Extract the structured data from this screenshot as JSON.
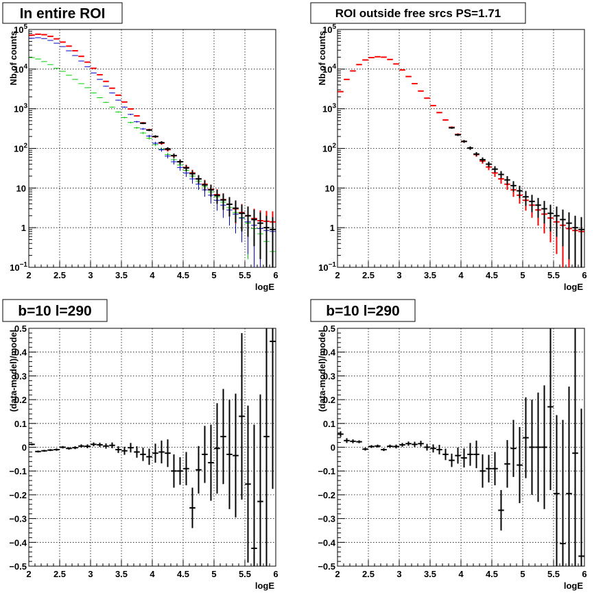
{
  "chart_data": [
    {
      "type": "scatter",
      "title": "In entire ROI",
      "xlabel": "logE",
      "ylabel": "Nb of counts",
      "xlim": [
        2,
        6
      ],
      "ylim": [
        0.1,
        100000
      ],
      "log_y": true,
      "grid": true,
      "x_ticks": [
        "2",
        "2.5",
        "3",
        "3.5",
        "4",
        "4.5",
        "5",
        "5.5",
        "6"
      ],
      "y_ticks": [
        {
          "v": 0.1,
          "base": "10",
          "exp": "−1"
        },
        {
          "v": 1,
          "base": "1",
          "exp": ""
        },
        {
          "v": 10,
          "base": "10",
          "exp": ""
        },
        {
          "v": 100,
          "base": "10",
          "exp": "2"
        },
        {
          "v": 1000,
          "base": "10",
          "exp": "3"
        },
        {
          "v": 10000,
          "base": "10",
          "exp": "4"
        },
        {
          "v": 100000,
          "base": "10",
          "exp": "5"
        }
      ],
      "series": [
        {
          "color": "#00cc00",
          "x": [
            2.05,
            2.15,
            2.25,
            2.35,
            2.45,
            2.55,
            2.65,
            2.75,
            2.85,
            2.95,
            3.05,
            3.15,
            3.25,
            3.35,
            3.45,
            3.55,
            3.65,
            3.75,
            3.85,
            3.95,
            4.05,
            4.15,
            4.25,
            4.35,
            4.45,
            4.55,
            4.65,
            4.75,
            4.85,
            4.95,
            5.05,
            5.15,
            5.25,
            5.35,
            5.45,
            5.55,
            5.65,
            5.75,
            5.85,
            5.95
          ],
          "values": [
            19500,
            18000,
            15500,
            13000,
            10500,
            8800,
            7000,
            5500,
            4300,
            3400,
            2500,
            1900,
            1450,
            1100,
            830,
            600,
            450,
            330,
            245,
            180,
            125,
            95,
            70,
            52,
            38,
            28,
            20,
            15,
            11,
            8,
            6,
            4.4,
            3.2,
            2.4,
            1.8,
            1.3,
            0.95,
            0.7,
            0.45,
            0.25
          ]
        },
        {
          "color": "#0000cc",
          "x": [
            2.05,
            2.15,
            2.25,
            2.35,
            2.45,
            2.55,
            2.65,
            2.75,
            2.85,
            2.95,
            3.05,
            3.15,
            3.25,
            3.35,
            3.45,
            3.55,
            3.65,
            3.75,
            3.85,
            3.95,
            4.05,
            4.15,
            4.25,
            4.35,
            4.45,
            4.55,
            4.65,
            4.75,
            4.85,
            4.95,
            5.05,
            5.15,
            5.25,
            5.35,
            5.45,
            5.55,
            5.65,
            5.75,
            5.85,
            5.95
          ],
          "values": [
            60000,
            62000,
            59000,
            53000,
            45000,
            37000,
            29000,
            22000,
            16000,
            11500,
            8000,
            5500,
            3700,
            2500,
            1650,
            1100,
            720,
            470,
            310,
            205,
            135,
            92,
            64,
            46,
            33,
            24,
            17,
            12.5,
            9,
            6.6,
            4.9,
            3.7,
            2.8,
            2.2,
            1.75,
            1.4,
            1.15,
            0.95,
            0.85,
            0.8
          ]
        },
        {
          "color": "#ff0000",
          "x": [
            2.05,
            2.15,
            2.25,
            2.35,
            2.45,
            2.55,
            2.65,
            2.75,
            2.85,
            2.95,
            3.05,
            3.15,
            3.25,
            3.35,
            3.45,
            3.55,
            3.65,
            3.75,
            3.85,
            3.95,
            4.05,
            4.15,
            4.25,
            4.35,
            4.45,
            4.55,
            4.65,
            4.75,
            4.85,
            4.95,
            5.05,
            5.15,
            5.25,
            5.35,
            5.45,
            5.55,
            5.65,
            5.75,
            5.85,
            5.95
          ],
          "values": [
            72000,
            76000,
            74000,
            67000,
            58000,
            48000,
            38000,
            29000,
            21000,
            15000,
            10500,
            7200,
            4900,
            3300,
            2200,
            1480,
            990,
            660,
            440,
            295,
            198,
            135,
            93,
            65,
            46,
            33,
            24,
            17,
            12.5,
            9.2,
            6.8,
            5.1,
            3.9,
            3.0,
            2.4,
            2.0,
            1.7,
            1.5,
            1.45,
            1.4
          ]
        },
        {
          "color": "#000000",
          "x": [
            3.85,
            3.95,
            4.05,
            4.15,
            4.25,
            4.35,
            4.45,
            4.55,
            4.65,
            4.75,
            4.85,
            4.95,
            5.05,
            5.15,
            5.25,
            5.35,
            5.45,
            5.55,
            5.65,
            5.75,
            5.85,
            5.95
          ],
          "values": [
            430,
            290,
            200,
            140,
            97,
            66,
            46,
            32,
            23,
            17,
            12,
            9,
            6.5,
            5,
            3.9,
            3.1,
            2.3,
            2.0,
            1.6,
            1.3,
            1.0,
            0.9
          ],
          "errors": [
            21,
            17,
            14,
            12,
            10,
            8.1,
            6.8,
            5.7,
            4.8,
            4.1,
            3.5,
            3.0,
            2.5,
            2.2,
            2.0,
            1.76,
            1.5,
            1.41,
            1.26,
            1.14,
            1.0,
            0.95
          ]
        }
      ]
    },
    {
      "type": "scatter",
      "title": "ROI outside free srcs PS=1.71",
      "xlabel": "logE",
      "ylabel": "Nb of counts",
      "xlim": [
        2,
        6
      ],
      "ylim": [
        0.1,
        100000
      ],
      "log_y": true,
      "grid": true,
      "x_ticks": [
        "2",
        "2.5",
        "3",
        "3.5",
        "4",
        "4.5",
        "5",
        "5.5",
        "6"
      ],
      "y_ticks": [
        {
          "v": 0.1,
          "base": "10",
          "exp": "−1"
        },
        {
          "v": 1,
          "base": "1",
          "exp": ""
        },
        {
          "v": 10,
          "base": "10",
          "exp": ""
        },
        {
          "v": 100,
          "base": "10",
          "exp": "2"
        },
        {
          "v": 1000,
          "base": "10",
          "exp": "3"
        },
        {
          "v": 10000,
          "base": "10",
          "exp": "4"
        },
        {
          "v": 100000,
          "base": "10",
          "exp": "5"
        }
      ],
      "series": [
        {
          "color": "#ff0000",
          "x": [
            2.05,
            2.15,
            2.25,
            2.35,
            2.45,
            2.55,
            2.65,
            2.75,
            2.85,
            2.95,
            3.05,
            3.15,
            3.25,
            3.35,
            3.45,
            3.55,
            3.65,
            3.75,
            3.85,
            3.95,
            4.05,
            4.15,
            4.25,
            4.35,
            4.45,
            4.55,
            4.65,
            4.75,
            4.85,
            4.95,
            5.05,
            5.15,
            5.25,
            5.35,
            5.45,
            5.55,
            5.65,
            5.75,
            5.85,
            5.95
          ],
          "values": [
            2700,
            5500,
            9000,
            13000,
            17000,
            19500,
            20500,
            20000,
            17500,
            13500,
            9500,
            6500,
            4300,
            2800,
            1850,
            1200,
            800,
            520,
            340,
            225,
            150,
            102,
            70,
            48,
            34,
            24,
            17,
            12.5,
            9,
            6.6,
            4.9,
            3.7,
            2.8,
            2.2,
            1.75,
            1.4,
            1.15,
            0.95,
            0.85,
            0.8
          ]
        },
        {
          "color": "#000000",
          "x": [
            3.85,
            3.95,
            4.05,
            4.15,
            4.25,
            4.35,
            4.45,
            4.55,
            4.65,
            4.75,
            4.85,
            4.95,
            5.05,
            5.15,
            5.25,
            5.35,
            5.45,
            5.55,
            5.65,
            5.75,
            5.85,
            5.95
          ],
          "values": [
            330,
            220,
            150,
            102,
            72,
            52,
            40,
            30,
            22,
            16,
            11.5,
            8.5,
            6.0,
            4.6,
            3.7,
            3.0,
            2.3,
            2.0,
            1.6,
            1.3,
            1.0,
            0.9
          ],
          "errors": [
            18,
            15,
            12,
            10,
            8.5,
            7.2,
            6.3,
            5.5,
            4.7,
            4.0,
            3.4,
            2.9,
            2.45,
            2.14,
            1.92,
            1.73,
            1.5,
            1.41,
            1.26,
            1.14,
            1.0,
            0.95
          ]
        }
      ]
    },
    {
      "type": "scatter",
      "title": "b=10 l=290",
      "xlabel": "logE",
      "ylabel": "(data-model)/model",
      "xlim": [
        2,
        6
      ],
      "ylim": [
        -0.5,
        0.5
      ],
      "grid": true,
      "x_ticks": [
        "2",
        "2.5",
        "3",
        "3.5",
        "4",
        "4.5",
        "5",
        "5.5",
        "6"
      ],
      "y_ticks": [
        "−0.5",
        "−0.4",
        "−0.3",
        "−0.2",
        "−0.1",
        "0",
        "0.1",
        "0.2",
        "0.3",
        "0.4",
        "0.5"
      ],
      "series": [
        {
          "color": "#000000",
          "x": [
            2.05,
            2.15,
            2.25,
            2.35,
            2.45,
            2.55,
            2.65,
            2.75,
            2.85,
            2.95,
            3.05,
            3.15,
            3.25,
            3.35,
            3.45,
            3.55,
            3.65,
            3.75,
            3.85,
            3.95,
            4.05,
            4.15,
            4.25,
            4.35,
            4.45,
            4.55,
            4.65,
            4.75,
            4.85,
            4.95,
            5.05,
            5.15,
            5.25,
            5.35,
            5.45,
            5.55,
            5.65,
            5.75,
            5.85,
            5.95
          ],
          "values": [
            0.012,
            -0.018,
            -0.015,
            -0.012,
            -0.01,
            0.0,
            -0.005,
            -0.002,
            0.005,
            0.004,
            0.012,
            0.01,
            0.005,
            0.008,
            -0.01,
            -0.015,
            -0.002,
            -0.02,
            -0.03,
            -0.04,
            -0.025,
            -0.02,
            -0.025,
            -0.1,
            -0.1,
            -0.09,
            -0.255,
            -0.095,
            -0.03,
            -0.065,
            -0.005,
            0.045,
            -0.03,
            -0.035,
            0.13,
            -0.155,
            -0.425,
            -0.228,
            0.045,
            0.445
          ],
          "errors": [
            0.004,
            0.004,
            0.004,
            0.004,
            0.005,
            0.005,
            0.005,
            0.006,
            0.007,
            0.008,
            0.008,
            0.009,
            0.011,
            0.012,
            0.014,
            0.017,
            0.02,
            0.024,
            0.028,
            0.034,
            0.04,
            0.048,
            0.058,
            0.07,
            0.058,
            0.07,
            0.085,
            0.1,
            0.12,
            0.16,
            0.19,
            0.2,
            0.23,
            0.26,
            0.35,
            0.33,
            0.52,
            0.45,
            0.55,
            0.62
          ]
        }
      ]
    },
    {
      "type": "scatter",
      "title": "b=10 l=290",
      "xlabel": "logE",
      "ylabel": "(data-model)/model",
      "xlim": [
        2,
        6
      ],
      "ylim": [
        -0.5,
        0.5
      ],
      "grid": true,
      "x_ticks": [
        "2",
        "2.5",
        "3",
        "3.5",
        "4",
        "4.5",
        "5",
        "5.5",
        "6"
      ],
      "y_ticks": [
        "−0.5",
        "−0.4",
        "−0.3",
        "−0.2",
        "−0.1",
        "0",
        "0.1",
        "0.2",
        "0.3",
        "0.4",
        "0.5"
      ],
      "series": [
        {
          "color": "#000000",
          "x": [
            2.05,
            2.15,
            2.25,
            2.35,
            2.45,
            2.55,
            2.65,
            2.75,
            2.85,
            2.95,
            3.05,
            3.15,
            3.25,
            3.35,
            3.45,
            3.55,
            3.65,
            3.75,
            3.85,
            3.95,
            4.05,
            4.15,
            4.25,
            4.35,
            4.45,
            4.55,
            4.65,
            4.75,
            4.85,
            4.95,
            5.05,
            5.15,
            5.25,
            5.35,
            5.45,
            5.55,
            5.65,
            5.75,
            5.85,
            5.95
          ],
          "values": [
            0.055,
            0.028,
            0.025,
            0.023,
            -0.008,
            0.003,
            0.005,
            -0.01,
            0.004,
            0.003,
            0.01,
            0.015,
            0.012,
            0.015,
            0.0,
            -0.005,
            -0.01,
            -0.03,
            -0.055,
            -0.035,
            -0.045,
            -0.03,
            -0.03,
            -0.1,
            -0.09,
            -0.09,
            -0.265,
            -0.07,
            -0.005,
            -0.075,
            0.04,
            0.0,
            0.0,
            0.0,
            0.17,
            -0.195,
            -0.405,
            -0.195,
            -0.025,
            -0.458
          ],
          "errors": [
            0.012,
            0.01,
            0.008,
            0.006,
            0.006,
            0.006,
            0.006,
            0.006,
            0.007,
            0.008,
            0.008,
            0.009,
            0.011,
            0.012,
            0.014,
            0.017,
            0.02,
            0.024,
            0.028,
            0.034,
            0.04,
            0.048,
            0.058,
            0.07,
            0.058,
            0.07,
            0.085,
            0.1,
            0.12,
            0.16,
            0.17,
            0.2,
            0.23,
            0.26,
            0.35,
            0.33,
            0.52,
            0.45,
            0.55,
            0.62
          ]
        }
      ]
    }
  ]
}
